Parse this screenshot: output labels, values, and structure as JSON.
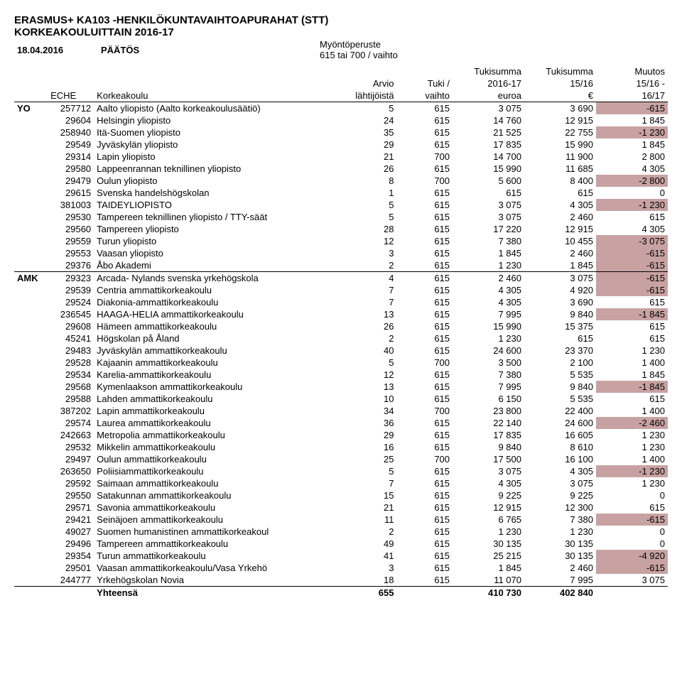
{
  "header": {
    "title1": "ERASMUS+ KA103 -HENKILÖKUNTAVAIHTOAPURAHAT (STT)",
    "title2": "KORKEAKOULUITTAIN 2016-17",
    "date_label": "18.04.2016",
    "decision": "PÄÄTÖS",
    "basis_label": "Myöntöperuste",
    "basis_value": "615 tai 700 / vaihto"
  },
  "columns": {
    "eche": "ECHE",
    "korkeakoulu": "Korkeakoulu",
    "arvio1": "Arvio",
    "arvio2": "lähtijöistä",
    "tuki1": "Tuki /",
    "tuki2": "vaihto",
    "sum1": "Tukisumma",
    "sum2": "2016-17",
    "sum3": "euroa",
    "prev1": "Tukisumma",
    "prev2": "15/16",
    "prev3": "€",
    "diff1": "Muutos",
    "diff2": "15/16 -",
    "diff3": "16/17"
  },
  "diff_colors": {
    "neg": "#c8a2a2",
    "zero": "#ffffff",
    "pos": "#ffffff"
  },
  "groups": [
    {
      "label": "YO",
      "rows": [
        {
          "eche": "257712",
          "name": "Aalto yliopisto (Aalto korkeakoulusäätiö)",
          "arvio": "5",
          "tuki": "615",
          "sum": "3 075",
          "prev": "3 690",
          "diff": "-615",
          "neg": true
        },
        {
          "eche": "29604",
          "name": "Helsingin yliopisto",
          "arvio": "24",
          "tuki": "615",
          "sum": "14 760",
          "prev": "12 915",
          "diff": "1 845"
        },
        {
          "eche": "258940",
          "name": "Itä-Suomen yliopisto",
          "arvio": "35",
          "tuki": "615",
          "sum": "21 525",
          "prev": "22 755",
          "diff": "-1 230",
          "neg": true
        },
        {
          "eche": "29549",
          "name": "Jyväskylän yliopisto",
          "arvio": "29",
          "tuki": "615",
          "sum": "17 835",
          "prev": "15 990",
          "diff": "1 845"
        },
        {
          "eche": "29314",
          "name": "Lapin yliopisto",
          "arvio": "21",
          "tuki": "700",
          "sum": "14 700",
          "prev": "11 900",
          "diff": "2 800"
        },
        {
          "eche": "29580",
          "name": "Lappeenrannan teknillinen yliopisto",
          "arvio": "26",
          "tuki": "615",
          "sum": "15 990",
          "prev": "11 685",
          "diff": "4 305"
        },
        {
          "eche": "29479",
          "name": "Oulun yliopisto",
          "arvio": "8",
          "tuki": "700",
          "sum": "5 600",
          "prev": "8 400",
          "diff": "-2 800",
          "neg": true
        },
        {
          "eche": "29615",
          "name": "Svenska handelshögskolan",
          "arvio": "1",
          "tuki": "615",
          "sum": "615",
          "prev": "615",
          "diff": "0"
        },
        {
          "eche": "381003",
          "name": "TAIDEYLIOPISTO",
          "arvio": "5",
          "tuki": "615",
          "sum": "3 075",
          "prev": "4 305",
          "diff": "-1 230",
          "neg": true
        },
        {
          "eche": "29530",
          "name": "Tampereen teknillinen yliopisto / TTY-säät",
          "arvio": "5",
          "tuki": "615",
          "sum": "3 075",
          "prev": "2 460",
          "diff": "615"
        },
        {
          "eche": "29560",
          "name": "Tampereen yliopisto",
          "arvio": "28",
          "tuki": "615",
          "sum": "17 220",
          "prev": "12 915",
          "diff": "4 305"
        },
        {
          "eche": "29559",
          "name": "Turun yliopisto",
          "arvio": "12",
          "tuki": "615",
          "sum": "7 380",
          "prev": "10 455",
          "diff": "-3 075",
          "neg": true
        },
        {
          "eche": "29553",
          "name": "Vaasan yliopisto",
          "arvio": "3",
          "tuki": "615",
          "sum": "1 845",
          "prev": "2 460",
          "diff": "-615",
          "neg": true
        },
        {
          "eche": "29376",
          "name": "Åbo Akademi",
          "arvio": "2",
          "tuki": "615",
          "sum": "1 230",
          "prev": "1 845",
          "diff": "-615",
          "neg": true,
          "underline": true
        }
      ]
    },
    {
      "label": "AMK",
      "rows": [
        {
          "eche": "29323",
          "name": "Arcada- Nylands svenska yrkehögskola",
          "arvio": "4",
          "tuki": "615",
          "sum": "2 460",
          "prev": "3 075",
          "diff": "-615",
          "neg": true
        },
        {
          "eche": "29539",
          "name": "Centria ammattikorkeakoulu",
          "arvio": "7",
          "tuki": "615",
          "sum": "4 305",
          "prev": "4 920",
          "diff": "-615",
          "neg": true
        },
        {
          "eche": "29524",
          "name": "Diakonia-ammattikorkeakoulu",
          "arvio": "7",
          "tuki": "615",
          "sum": "4 305",
          "prev": "3 690",
          "diff": "615"
        },
        {
          "eche": "236545",
          "name": "HAAGA-HELIA ammattikorkeakoulu",
          "arvio": "13",
          "tuki": "615",
          "sum": "7 995",
          "prev": "9 840",
          "diff": "-1 845",
          "neg": true
        },
        {
          "eche": "29608",
          "name": "Hämeen ammattikorkeakoulu",
          "arvio": "26",
          "tuki": "615",
          "sum": "15 990",
          "prev": "15 375",
          "diff": "615"
        },
        {
          "eche": "45241",
          "name": "Högskolan på Åland",
          "arvio": "2",
          "tuki": "615",
          "sum": "1 230",
          "prev": "615",
          "diff": "615"
        },
        {
          "eche": "29483",
          "name": "Jyväskylän ammattikorkeakoulu",
          "arvio": "40",
          "tuki": "615",
          "sum": "24 600",
          "prev": "23 370",
          "diff": "1 230"
        },
        {
          "eche": "29528",
          "name": "Kajaanin ammattikorkeakoulu",
          "arvio": "5",
          "tuki": "700",
          "sum": "3 500",
          "prev": "2 100",
          "diff": "1 400"
        },
        {
          "eche": "29534",
          "name": "Karelia-ammattikorkeakoulu",
          "arvio": "12",
          "tuki": "615",
          "sum": "7 380",
          "prev": "5 535",
          "diff": "1 845"
        },
        {
          "eche": "29568",
          "name": "Kymenlaakson ammattikorkeakoulu",
          "arvio": "13",
          "tuki": "615",
          "sum": "7 995",
          "prev": "9 840",
          "diff": "-1 845",
          "neg": true
        },
        {
          "eche": "29588",
          "name": "Lahden ammattikorkeakoulu",
          "arvio": "10",
          "tuki": "615",
          "sum": "6 150",
          "prev": "5 535",
          "diff": "615"
        },
        {
          "eche": "387202",
          "name": "Lapin ammattikorkeakoulu",
          "arvio": "34",
          "tuki": "700",
          "sum": "23 800",
          "prev": "22 400",
          "diff": "1 400"
        },
        {
          "eche": "29574",
          "name": "Laurea ammattikorkeakoulu",
          "arvio": "36",
          "tuki": "615",
          "sum": "22 140",
          "prev": "24 600",
          "diff": "-2 460",
          "neg": true
        },
        {
          "eche": "242663",
          "name": "Metropolia ammattikorkeakoulu",
          "arvio": "29",
          "tuki": "615",
          "sum": "17 835",
          "prev": "16 605",
          "diff": "1 230"
        },
        {
          "eche": "29532",
          "name": "Mikkelin ammattikorkeakoulu",
          "arvio": "16",
          "tuki": "615",
          "sum": "9 840",
          "prev": "8 610",
          "diff": "1 230"
        },
        {
          "eche": "29497",
          "name": "Oulun ammattikorkeakoulu",
          "arvio": "25",
          "tuki": "700",
          "sum": "17 500",
          "prev": "16 100",
          "diff": "1 400"
        },
        {
          "eche": "263650",
          "name": "Poliisiammattikorkeakoulu",
          "arvio": "5",
          "tuki": "615",
          "sum": "3 075",
          "prev": "4 305",
          "diff": "-1 230",
          "neg": true
        },
        {
          "eche": "29592",
          "name": "Saimaan ammattikorkeakoulu",
          "arvio": "7",
          "tuki": "615",
          "sum": "4 305",
          "prev": "3 075",
          "diff": "1 230"
        },
        {
          "eche": "29550",
          "name": "Satakunnan ammattikorkeakoulu",
          "arvio": "15",
          "tuki": "615",
          "sum": "9 225",
          "prev": "9 225",
          "diff": "0"
        },
        {
          "eche": "29571",
          "name": "Savonia ammattikorkeakoulu",
          "arvio": "21",
          "tuki": "615",
          "sum": "12 915",
          "prev": "12 300",
          "diff": "615"
        },
        {
          "eche": "29421",
          "name": "Seinäjoen ammattikorkeakoulu",
          "arvio": "11",
          "tuki": "615",
          "sum": "6 765",
          "prev": "7 380",
          "diff": "-615",
          "neg": true
        },
        {
          "eche": "49027",
          "name": "Suomen humanistinen ammattikorkeakoul",
          "arvio": "2",
          "tuki": "615",
          "sum": "1 230",
          "prev": "1 230",
          "diff": "0"
        },
        {
          "eche": "29496",
          "name": "Tampereen ammattikorkeakoulu",
          "arvio": "49",
          "tuki": "615",
          "sum": "30 135",
          "prev": "30 135",
          "diff": "0"
        },
        {
          "eche": "29354",
          "name": "Turun ammattikorkeakoulu",
          "arvio": "41",
          "tuki": "615",
          "sum": "25 215",
          "prev": "30 135",
          "diff": "-4 920",
          "neg": true
        },
        {
          "eche": "29501",
          "name": "Vaasan ammattikorkeakoulu/Vasa Yrkehö",
          "arvio": "3",
          "tuki": "615",
          "sum": "1 845",
          "prev": "2 460",
          "diff": "-615",
          "neg": true
        },
        {
          "eche": "244777",
          "name": "Yrkehögskolan Novia",
          "arvio": "18",
          "tuki": "615",
          "sum": "11 070",
          "prev": "7 995",
          "diff": "3 075"
        }
      ]
    }
  ],
  "total": {
    "label": "Yhteensä",
    "arvio": "655",
    "sum": "410 730",
    "prev": "402 840"
  }
}
